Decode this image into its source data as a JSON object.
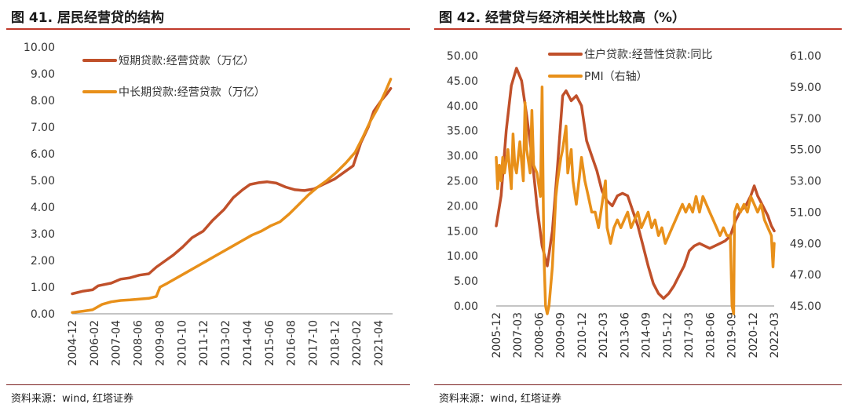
{
  "left": {
    "title": "图 41. 居民经营贷的结构",
    "source": "资料来源：wind, 红塔证券"
  },
  "right": {
    "title": "图 42. 经营贷与经济相关性比较高（%）",
    "source": "资料来源：wind, 红塔证券"
  },
  "colors": {
    "rule": "#c0392b",
    "series_a": "#c0502a",
    "series_b": "#e8901a"
  },
  "chart_data": [
    {
      "type": "line",
      "title": "图 41. 居民经营贷的结构",
      "ylim": [
        0,
        10
      ],
      "yticks": [
        "10.00",
        "9.00",
        "8.00",
        "7.00",
        "6.00",
        "5.00",
        "4.00",
        "3.00",
        "2.00",
        "1.00",
        "0.00"
      ],
      "xlim": [
        2004.917,
        2022.0
      ],
      "xticks": [
        "2004-12",
        "2006-02",
        "2007-04",
        "2008-06",
        "2009-08",
        "2010-10",
        "2011-12",
        "2013-02",
        "2014-04",
        "2015-06",
        "2016-08",
        "2017-10",
        "2018-12",
        "2020-02",
        "2021-04"
      ],
      "legend_position": "top-left",
      "series": [
        {
          "name": "短期贷款:经营贷款（万亿）",
          "color": "#c0502a",
          "points": [
            [
              2004.917,
              0.75
            ],
            [
              2005.5,
              0.85
            ],
            [
              2006.0,
              0.9
            ],
            [
              2006.3,
              1.05
            ],
            [
              2007.0,
              1.15
            ],
            [
              2007.5,
              1.3
            ],
            [
              2008.0,
              1.35
            ],
            [
              2008.5,
              1.45
            ],
            [
              2009.0,
              1.5
            ],
            [
              2009.4,
              1.75
            ],
            [
              2009.9,
              2.0
            ],
            [
              2010.3,
              2.2
            ],
            [
              2010.8,
              2.5
            ],
            [
              2011.3,
              2.85
            ],
            [
              2011.9,
              3.1
            ],
            [
              2012.4,
              3.5
            ],
            [
              2013.0,
              3.9
            ],
            [
              2013.5,
              4.35
            ],
            [
              2014.0,
              4.65
            ],
            [
              2014.4,
              4.85
            ],
            [
              2014.9,
              4.92
            ],
            [
              2015.3,
              4.95
            ],
            [
              2015.8,
              4.9
            ],
            [
              2016.3,
              4.75
            ],
            [
              2016.8,
              4.65
            ],
            [
              2017.3,
              4.62
            ],
            [
              2017.8,
              4.68
            ],
            [
              2018.3,
              4.85
            ],
            [
              2018.9,
              5.05
            ],
            [
              2019.4,
              5.3
            ],
            [
              2019.9,
              5.55
            ],
            [
              2020.3,
              6.4
            ],
            [
              2020.7,
              7.0
            ],
            [
              2021.0,
              7.6
            ],
            [
              2021.4,
              8.0
            ],
            [
              2021.7,
              8.25
            ],
            [
              2021.9,
              8.45
            ]
          ]
        },
        {
          "name": "中长期贷款:经营贷款（万亿）",
          "color": "#e8901a",
          "points": [
            [
              2004.917,
              0.05
            ],
            [
              2005.5,
              0.1
            ],
            [
              2006.0,
              0.15
            ],
            [
              2006.5,
              0.35
            ],
            [
              2007.0,
              0.45
            ],
            [
              2007.5,
              0.5
            ],
            [
              2008.0,
              0.52
            ],
            [
              2008.5,
              0.55
            ],
            [
              2009.0,
              0.58
            ],
            [
              2009.4,
              0.65
            ],
            [
              2009.6,
              1.0
            ],
            [
              2010.0,
              1.15
            ],
            [
              2010.5,
              1.35
            ],
            [
              2011.0,
              1.55
            ],
            [
              2011.5,
              1.75
            ],
            [
              2012.0,
              1.95
            ],
            [
              2012.5,
              2.15
            ],
            [
              2013.0,
              2.35
            ],
            [
              2013.5,
              2.55
            ],
            [
              2014.0,
              2.75
            ],
            [
              2014.5,
              2.95
            ],
            [
              2015.0,
              3.1
            ],
            [
              2015.5,
              3.3
            ],
            [
              2016.0,
              3.45
            ],
            [
              2016.5,
              3.75
            ],
            [
              2017.0,
              4.1
            ],
            [
              2017.5,
              4.45
            ],
            [
              2018.0,
              4.75
            ],
            [
              2018.5,
              5.0
            ],
            [
              2019.0,
              5.3
            ],
            [
              2019.5,
              5.65
            ],
            [
              2020.0,
              6.05
            ],
            [
              2020.4,
              6.6
            ],
            [
              2020.8,
              7.2
            ],
            [
              2021.2,
              7.7
            ],
            [
              2021.6,
              8.3
            ],
            [
              2021.9,
              8.8
            ]
          ]
        }
      ]
    },
    {
      "type": "line",
      "title": "图 42. 经营贷与经济相关性比较高（%）",
      "ylim": [
        0,
        50
      ],
      "yticks": [
        "50.00",
        "45.00",
        "40.00",
        "35.00",
        "30.00",
        "25.00",
        "20.00",
        "15.00",
        "10.00",
        "5.00",
        "0.00"
      ],
      "y2lim": [
        45,
        61
      ],
      "y2ticks": [
        "61.00",
        "59.00",
        "57.00",
        "55.00",
        "53.00",
        "51.00",
        "49.00",
        "47.00",
        "45.00"
      ],
      "xlim": [
        2005.917,
        2022.167
      ],
      "xticks": [
        "2005-12",
        "2007-03",
        "2008-06",
        "2009-09",
        "2010-12",
        "2012-03",
        "2013-06",
        "2014-09",
        "2015-12",
        "2017-03",
        "2018-06",
        "2019-09",
        "2020-12",
        "2022-03"
      ],
      "legend_position": "top-right",
      "series": [
        {
          "name": "住户贷款:经营性贷款:同比",
          "axis": "left",
          "color": "#c0502a",
          "points": [
            [
              2005.917,
              16
            ],
            [
              2006.2,
              22
            ],
            [
              2006.5,
              35
            ],
            [
              2006.8,
              44
            ],
            [
              2007.1,
              47.5
            ],
            [
              2007.4,
              45
            ],
            [
              2007.7,
              38
            ],
            [
              2008.0,
              30
            ],
            [
              2008.3,
              20
            ],
            [
              2008.6,
              12
            ],
            [
              2008.9,
              8
            ],
            [
              2009.2,
              15
            ],
            [
              2009.5,
              28
            ],
            [
              2009.8,
              42
            ],
            [
              2010.0,
              43
            ],
            [
              2010.3,
              41
            ],
            [
              2010.6,
              42
            ],
            [
              2010.9,
              40
            ],
            [
              2011.2,
              33
            ],
            [
              2011.5,
              30
            ],
            [
              2011.8,
              27
            ],
            [
              2012.1,
              23
            ],
            [
              2012.4,
              21
            ],
            [
              2012.7,
              20
            ],
            [
              2013.0,
              22
            ],
            [
              2013.3,
              22.5
            ],
            [
              2013.6,
              22
            ],
            [
              2013.9,
              19
            ],
            [
              2014.2,
              16
            ],
            [
              2014.5,
              12
            ],
            [
              2014.8,
              8
            ],
            [
              2015.1,
              4.5
            ],
            [
              2015.4,
              2.5
            ],
            [
              2015.7,
              1.5
            ],
            [
              2016.0,
              2.5
            ],
            [
              2016.3,
              4
            ],
            [
              2016.6,
              6
            ],
            [
              2016.9,
              8
            ],
            [
              2017.2,
              11
            ],
            [
              2017.5,
              12
            ],
            [
              2017.8,
              12.5
            ],
            [
              2018.1,
              12
            ],
            [
              2018.4,
              11.5
            ],
            [
              2018.7,
              12
            ],
            [
              2019.0,
              12.5
            ],
            [
              2019.3,
              13
            ],
            [
              2019.6,
              14
            ],
            [
              2019.9,
              17
            ],
            [
              2020.2,
              19
            ],
            [
              2020.5,
              20
            ],
            [
              2020.8,
              22
            ],
            [
              2021.0,
              24
            ],
            [
              2021.2,
              22
            ],
            [
              2021.5,
              20
            ],
            [
              2021.8,
              18
            ],
            [
              2022.0,
              16
            ],
            [
              2022.167,
              15
            ]
          ]
        },
        {
          "name": "PMI（右轴）",
          "axis": "right",
          "color": "#e8901a",
          "points": [
            [
              2005.917,
              54.5
            ],
            [
              2006.0,
              52.5
            ],
            [
              2006.1,
              54
            ],
            [
              2006.2,
              53
            ],
            [
              2006.3,
              54.5
            ],
            [
              2006.4,
              53.5
            ],
            [
              2006.6,
              55
            ],
            [
              2006.8,
              52.5
            ],
            [
              2006.9,
              56
            ],
            [
              2007.0,
              54
            ],
            [
              2007.1,
              53.5
            ],
            [
              2007.3,
              55.5
            ],
            [
              2007.5,
              53
            ],
            [
              2007.6,
              58
            ],
            [
              2007.7,
              55
            ],
            [
              2007.9,
              53.5
            ],
            [
              2008.0,
              57.5
            ],
            [
              2008.1,
              54
            ],
            [
              2008.3,
              53.5
            ],
            [
              2008.5,
              52
            ],
            [
              2008.6,
              59
            ],
            [
              2008.7,
              48.5
            ],
            [
              2008.8,
              45
            ],
            [
              2008.9,
              44.5
            ],
            [
              2009.0,
              45
            ],
            [
              2009.2,
              47.5
            ],
            [
              2009.4,
              52
            ],
            [
              2009.5,
              53
            ],
            [
              2009.7,
              54.5
            ],
            [
              2009.8,
              55
            ],
            [
              2010.0,
              56.5
            ],
            [
              2010.1,
              53.5
            ],
            [
              2010.3,
              55
            ],
            [
              2010.4,
              53
            ],
            [
              2010.6,
              51.5
            ],
            [
              2010.8,
              53.5
            ],
            [
              2010.9,
              54.5
            ],
            [
              2011.1,
              53
            ],
            [
              2011.3,
              52
            ],
            [
              2011.5,
              51
            ],
            [
              2011.7,
              51
            ],
            [
              2011.9,
              50
            ],
            [
              2012.1,
              51.5
            ],
            [
              2012.3,
              53
            ],
            [
              2012.4,
              50
            ],
            [
              2012.6,
              49
            ],
            [
              2012.8,
              50
            ],
            [
              2013.0,
              50.5
            ],
            [
              2013.2,
              50
            ],
            [
              2013.4,
              50.5
            ],
            [
              2013.6,
              51
            ],
            [
              2013.8,
              50
            ],
            [
              2014.0,
              50.5
            ],
            [
              2014.2,
              51
            ],
            [
              2014.4,
              50
            ],
            [
              2014.6,
              50.5
            ],
            [
              2014.8,
              51
            ],
            [
              2015.0,
              50
            ],
            [
              2015.2,
              50.5
            ],
            [
              2015.4,
              49.5
            ],
            [
              2015.6,
              50
            ],
            [
              2015.8,
              49
            ],
            [
              2016.0,
              49.5
            ],
            [
              2016.2,
              50
            ],
            [
              2016.4,
              50.5
            ],
            [
              2016.6,
              51
            ],
            [
              2016.8,
              51.5
            ],
            [
              2017.0,
              51
            ],
            [
              2017.2,
              51.5
            ],
            [
              2017.4,
              51
            ],
            [
              2017.6,
              52
            ],
            [
              2017.8,
              51
            ],
            [
              2018.0,
              52
            ],
            [
              2018.2,
              51.5
            ],
            [
              2018.4,
              51
            ],
            [
              2018.6,
              50.5
            ],
            [
              2018.8,
              50
            ],
            [
              2019.0,
              49.5
            ],
            [
              2019.2,
              50
            ],
            [
              2019.4,
              49.5
            ],
            [
              2019.6,
              49.5
            ],
            [
              2019.7,
              45
            ],
            [
              2019.8,
              44.5
            ],
            [
              2019.85,
              51
            ],
            [
              2020.0,
              51.5
            ],
            [
              2020.2,
              51
            ],
            [
              2020.4,
              51.5
            ],
            [
              2020.6,
              51
            ],
            [
              2020.8,
              52
            ],
            [
              2021.0,
              51.5
            ],
            [
              2021.2,
              51
            ],
            [
              2021.4,
              51.5
            ],
            [
              2021.6,
              50.5
            ],
            [
              2021.8,
              50
            ],
            [
              2022.0,
              49.5
            ],
            [
              2022.1,
              47.5
            ],
            [
              2022.167,
              49
            ]
          ]
        }
      ]
    }
  ]
}
